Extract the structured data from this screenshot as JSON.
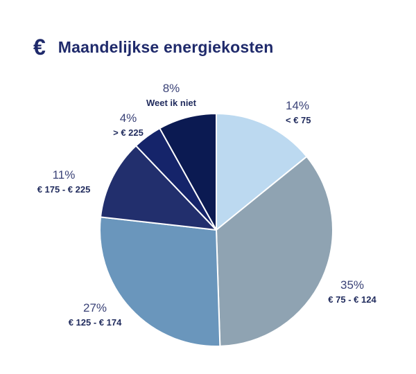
{
  "header": {
    "icon": "euro-icon",
    "icon_glyph": "€",
    "title": "Maandelijkse energiekosten"
  },
  "chart_data": {
    "type": "pie",
    "title": "Maandelijkse energiekosten",
    "start": "top",
    "direction": "clockwise",
    "slices": [
      {
        "label": "< € 75",
        "value": 14,
        "value_label": "14%",
        "color": "#bcd9f0"
      },
      {
        "label": "€ 75 - € 124",
        "value": 35,
        "value_label": "35%",
        "color": "#8fa3b2"
      },
      {
        "label": "€ 125 - € 174",
        "value": 27,
        "value_label": "27%",
        "color": "#6a96bc"
      },
      {
        "label": "€ 175 - € 225",
        "value": 11,
        "value_label": "11%",
        "color": "#222f6d"
      },
      {
        "label": "> € 225",
        "value": 4,
        "value_label": "4%",
        "color": "#15246a"
      },
      {
        "label": "Weet ik niet",
        "value": 8,
        "value_label": "8%",
        "color": "#0b1a52"
      }
    ]
  }
}
